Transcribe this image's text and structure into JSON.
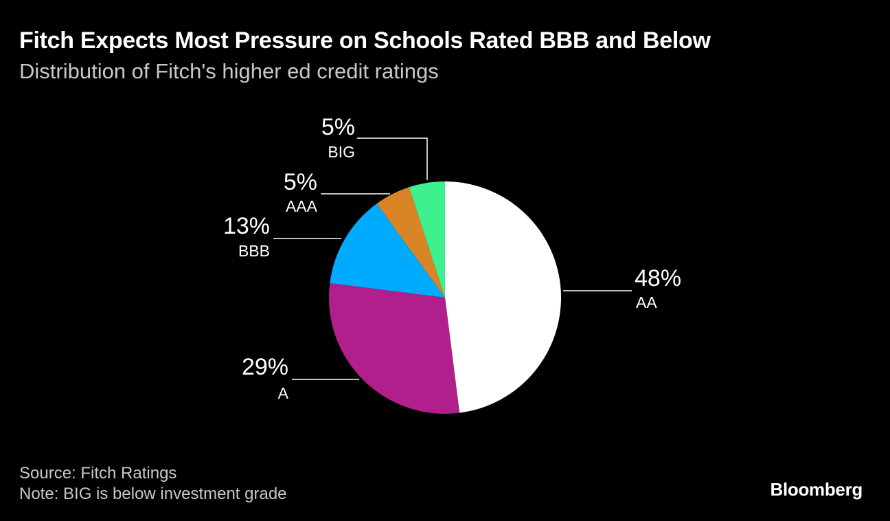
{
  "header": {
    "title": "Fitch Expects Most Pressure on Schools Rated BBB and Below",
    "subtitle": "Distribution of Fitch's higher ed credit ratings"
  },
  "footer": {
    "source": "Source: Fitch Ratings",
    "note": "Note: BIG is below investment grade",
    "brand": "Bloomberg"
  },
  "chart_data": {
    "type": "pie",
    "title": "Fitch Expects Most Pressure on Schools Rated BBB and Below",
    "subtitle": "Distribution of Fitch's higher ed credit ratings",
    "slices": [
      {
        "label": "AA",
        "value": 48,
        "value_label": "48%",
        "color": "#ffffff"
      },
      {
        "label": "A",
        "value": 29,
        "value_label": "29%",
        "color": "#b01f8b"
      },
      {
        "label": "BBB",
        "value": 13,
        "value_label": "13%",
        "color": "#00aaff"
      },
      {
        "label": "AAA",
        "value": 5,
        "value_label": "5%",
        "color": "#d98526"
      },
      {
        "label": "BIG",
        "value": 5,
        "value_label": "5%",
        "color": "#3ef08e"
      }
    ],
    "start": "12 o'clock",
    "direction": "clockwise",
    "legend": "none"
  }
}
